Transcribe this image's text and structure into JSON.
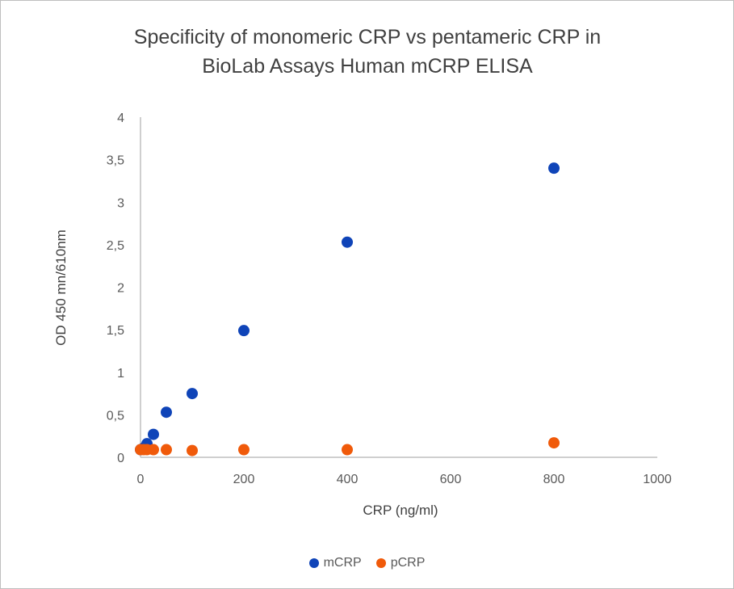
{
  "chart_data": {
    "type": "scatter",
    "title_lines": [
      "Specificity of monomeric CRP vs pentameric CRP in",
      "BioLab Assays Human mCRP ELISA"
    ],
    "xlabel": "CRP (ng/ml)",
    "ylabel": "OD 450 mn/610nm",
    "xlim": [
      0,
      1000
    ],
    "ylim": [
      0,
      4
    ],
    "x_ticks": [
      "0",
      "200",
      "400",
      "600",
      "800",
      "1000"
    ],
    "x_tick_values": [
      0,
      200,
      400,
      600,
      800,
      1000
    ],
    "y_ticks": [
      "0",
      "0,5",
      "1",
      "1,5",
      "2",
      "2,5",
      "3",
      "3,5",
      "4"
    ],
    "y_tick_values": [
      0,
      0.5,
      1,
      1.5,
      2,
      2.5,
      3,
      3.5,
      4
    ],
    "grid": false,
    "legend_position": "bottom",
    "series": [
      {
        "name": "mCRP",
        "color": "#0f44b8",
        "x": [
          0,
          6.25,
          12.5,
          25,
          50,
          100,
          200,
          400,
          800
        ],
        "y": [
          0.09,
          0.11,
          0.16,
          0.27,
          0.53,
          0.75,
          1.49,
          2.53,
          3.4
        ]
      },
      {
        "name": "pCRP",
        "color": "#f05a0a",
        "x": [
          0,
          6.25,
          12.5,
          25,
          50,
          100,
          200,
          400,
          800
        ],
        "y": [
          0.09,
          0.09,
          0.09,
          0.09,
          0.09,
          0.08,
          0.09,
          0.09,
          0.17
        ]
      }
    ]
  }
}
